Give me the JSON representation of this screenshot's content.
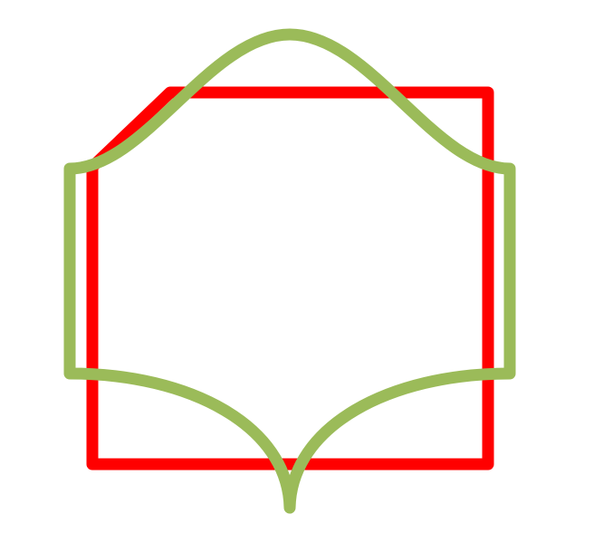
{
  "diagram": {
    "background": "#ffffff",
    "shapes": [
      {
        "name": "red-chamfered-polygon",
        "kind": "polygon-outline",
        "stroke": "#ff0000",
        "fill": "none"
      },
      {
        "name": "green-curved-outline",
        "kind": "curved-outline",
        "stroke": "#9bbb59",
        "fill": "none"
      }
    ]
  }
}
